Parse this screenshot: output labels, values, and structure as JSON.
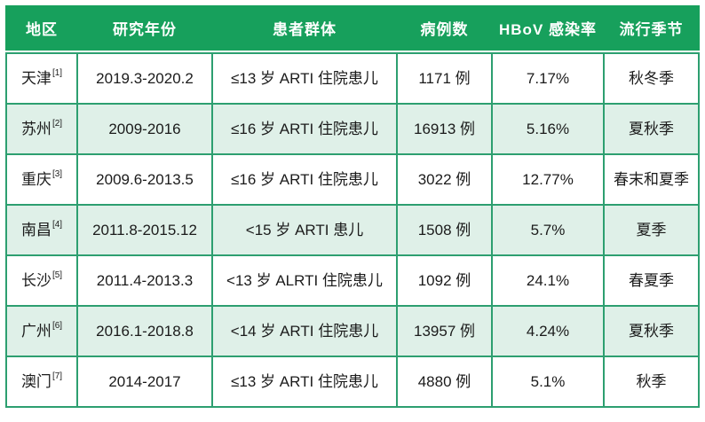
{
  "colors": {
    "header_bg": "#17a05c",
    "grid_border": "#2d9f70",
    "row_bg": "#ffffff",
    "row_alt_bg": "#dff0e8",
    "header_text": "#ffffff",
    "body_text": "#1b1b1b"
  },
  "table": {
    "headers": [
      "地区",
      "研究年份",
      "患者群体",
      "病例数",
      "HBoV 感染率",
      "流行季节"
    ],
    "rows": [
      {
        "region": "天津",
        "ref": "[1]",
        "years": "2019.3-2020.2",
        "population": "≤13 岁 ARTI 住院患儿",
        "cases": "1171 例",
        "rate": "7.17%",
        "season": "秋冬季"
      },
      {
        "region": "苏州",
        "ref": "[2]",
        "years": "2009-2016",
        "population": "≤16 岁 ARTI 住院患儿",
        "cases": "16913 例",
        "rate": "5.16%",
        "season": "夏秋季"
      },
      {
        "region": "重庆",
        "ref": "[3]",
        "years": "2009.6-2013.5",
        "population": "≤16 岁 ARTI 住院患儿",
        "cases": "3022 例",
        "rate": "12.77%",
        "season": "春末和夏季"
      },
      {
        "region": "南昌",
        "ref": "[4]",
        "years": "2011.8-2015.12",
        "population": "<15 岁 ARTI 患儿",
        "cases": "1508 例",
        "rate": "5.7%",
        "season": "夏季"
      },
      {
        "region": "长沙",
        "ref": "[5]",
        "years": "2011.4-2013.3",
        "population": "<13 岁 ALRTI 住院患儿",
        "cases": "1092 例",
        "rate": "24.1%",
        "season": "春夏季"
      },
      {
        "region": "广州",
        "ref": "[6]",
        "years": "2016.1-2018.8",
        "population": "<14 岁 ARTI 住院患儿",
        "cases": "13957 例",
        "rate": "4.24%",
        "season": "夏秋季"
      },
      {
        "region": "澳门",
        "ref": "[7]",
        "years": "2014-2017",
        "population": "≤13 岁 ARTI 住院患儿",
        "cases": "4880 例",
        "rate": "5.1%",
        "season": "秋季"
      }
    ]
  },
  "chart_data": {
    "type": "table",
    "columns": [
      "地区",
      "研究年份",
      "患者群体",
      "病例数",
      "HBoV 感染率",
      "流行季节"
    ],
    "rows": [
      [
        "天津[1]",
        "2019.3-2020.2",
        "≤13 岁 ARTI 住院患儿",
        "1171 例",
        "7.17%",
        "秋冬季"
      ],
      [
        "苏州[2]",
        "2009-2016",
        "≤16 岁 ARTI 住院患儿",
        "16913 例",
        "5.16%",
        "夏秋季"
      ],
      [
        "重庆[3]",
        "2009.6-2013.5",
        "≤16 岁 ARTI 住院患儿",
        "3022 例",
        "12.77%",
        "春末和夏季"
      ],
      [
        "南昌[4]",
        "2011.8-2015.12",
        "<15 岁 ARTI 患儿",
        "1508 例",
        "5.7%",
        "夏季"
      ],
      [
        "长沙[5]",
        "2011.4-2013.3",
        "<13 岁 ALRTI 住院患儿",
        "1092 例",
        "24.1%",
        "春夏季"
      ],
      [
        "广州[6]",
        "2016.1-2018.8",
        "<14 岁 ARTI 住院患儿",
        "13957 例",
        "4.24%",
        "夏秋季"
      ],
      [
        "澳门[7]",
        "2014-2017",
        "≤13 岁 ARTI 住院患儿",
        "4880 例",
        "5.1%",
        "秋季"
      ]
    ],
    "infection_rate_percent": [
      7.17,
      5.16,
      12.77,
      5.7,
      24.1,
      4.24,
      5.1
    ],
    "case_counts": [
      1171,
      16913,
      3022,
      1508,
      1092,
      13957,
      4880
    ],
    "layout_hints": {
      "header_style": "solid green bar, white bold text",
      "row_striping": "rows 2,4,6 light mint",
      "grid": "green 2px cell borders, no outer top border on body"
    }
  }
}
